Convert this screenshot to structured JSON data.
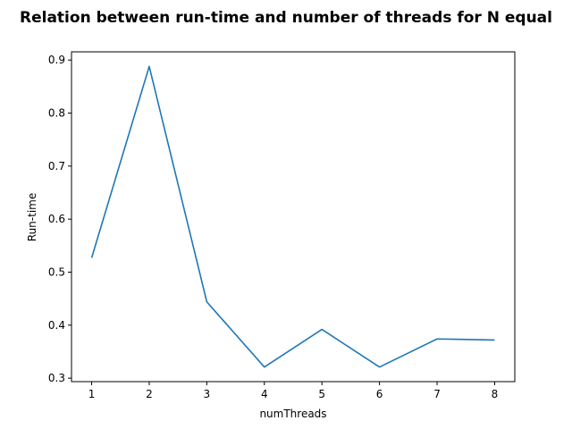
{
  "chart_data": {
    "type": "line",
    "title": "Relation between run-time and number of threads for N equal",
    "xlabel": "numThreads",
    "ylabel": "Run-time",
    "x": [
      1,
      2,
      3,
      4,
      5,
      6,
      7,
      8
    ],
    "series": [
      {
        "values": [
          0.527,
          0.888,
          0.444,
          0.321,
          0.392,
          0.321,
          0.374,
          0.372
        ],
        "color": "#1f77b4"
      }
    ],
    "xlim": [
      0.65,
      8.35
    ],
    "ylim": [
      0.2935,
      0.9155
    ],
    "xticks": [
      1,
      2,
      3,
      4,
      5,
      6,
      7,
      8
    ],
    "yticks": [
      0.3,
      0.4,
      0.5,
      0.6,
      0.7,
      0.8,
      0.9
    ],
    "grid": false
  }
}
